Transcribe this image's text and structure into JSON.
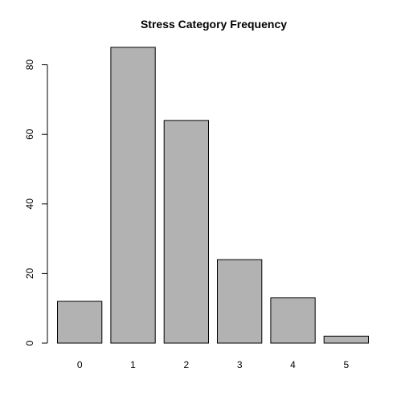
{
  "chart_data": {
    "type": "bar",
    "title": "Stress Category Frequency",
    "xlabel": "",
    "ylabel": "",
    "categories": [
      "0",
      "1",
      "2",
      "3",
      "4",
      "5"
    ],
    "values": [
      12,
      85,
      64,
      24,
      13,
      2
    ],
    "ylim": [
      0,
      90
    ],
    "y_ticks": [
      0,
      20,
      40,
      60,
      80
    ],
    "bar_color": "#b2b2b2",
    "bar_border_color": "#000000",
    "grid": false,
    "legend": "none"
  }
}
